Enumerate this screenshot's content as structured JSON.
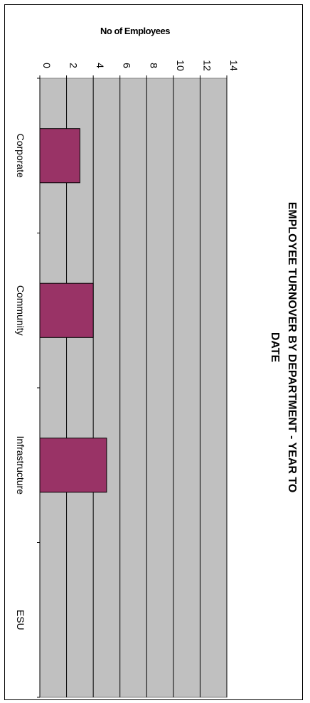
{
  "chart_data": {
    "type": "bar",
    "orientation": "rotated-90-clockwise",
    "title": "EMPLOYEE TURNOVER BY DEPARTMENT - YEAR TO DATE",
    "title_lines": [
      "EMPLOYEE TURNOVER BY DEPARTMENT - YEAR TO",
      "DATE"
    ],
    "ylabel": "No of Employees",
    "xlabel": "",
    "categories": [
      "Corporate",
      "Community",
      "Infrastructure",
      "ESU"
    ],
    "values": [
      3,
      4,
      5,
      0
    ],
    "ylim": [
      0,
      14
    ],
    "yticks": [
      "0",
      "2",
      "4",
      "6",
      "8",
      "10",
      "12",
      "14"
    ],
    "grid": true,
    "legend": "none",
    "colors": {
      "bar": "#993366",
      "plot_bg": "#c0c0c0",
      "axis": "#000000"
    }
  }
}
